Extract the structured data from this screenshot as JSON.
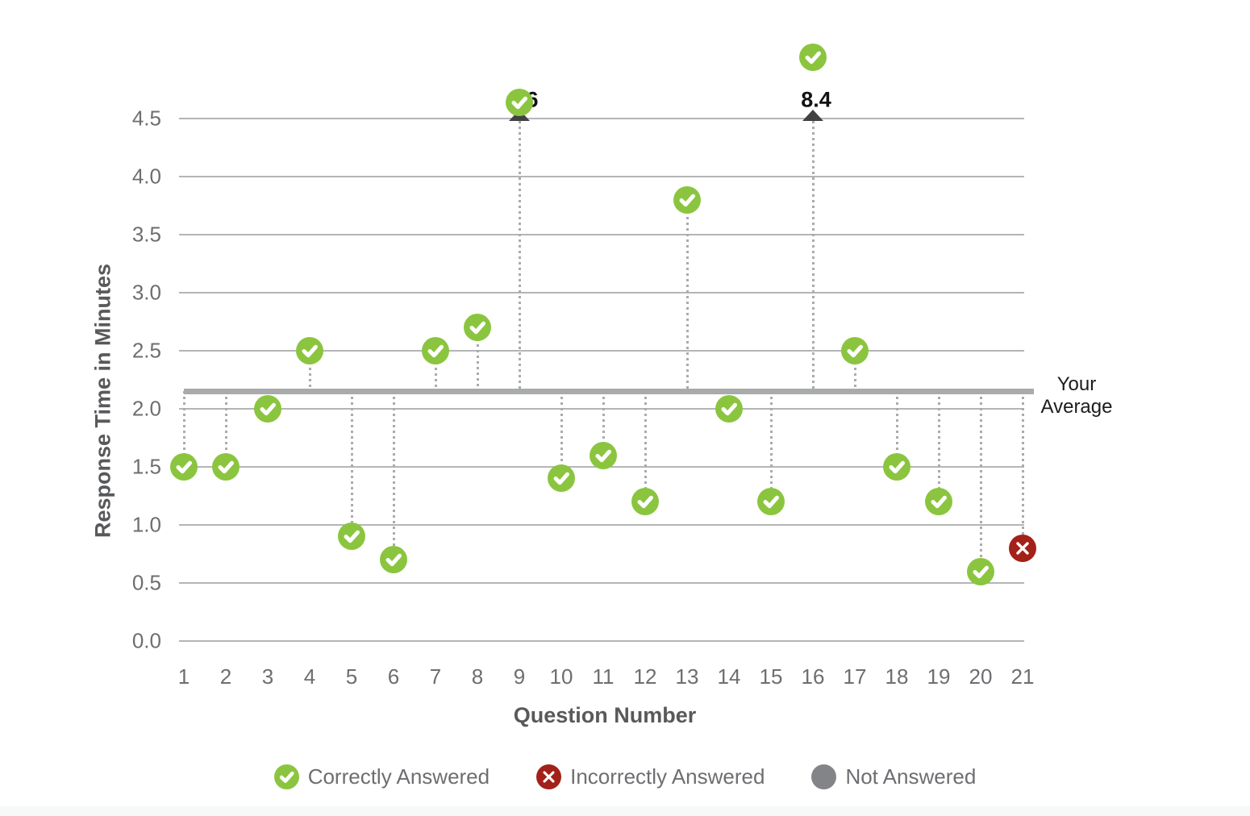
{
  "chart_data": {
    "type": "scatter",
    "xlabel": "Question Number",
    "ylabel": "Response Time in Minutes",
    "yticks": [
      0.0,
      0.5,
      1.0,
      1.5,
      2.0,
      2.5,
      3.0,
      3.5,
      4.0,
      4.5
    ],
    "ylim": [
      0,
      4.5
    ],
    "x_categories": [
      1,
      2,
      3,
      4,
      5,
      6,
      7,
      8,
      9,
      10,
      11,
      12,
      13,
      14,
      15,
      16,
      17,
      18,
      19,
      20,
      21
    ],
    "average": {
      "value": 2.15,
      "label": "Your Average"
    },
    "points": [
      {
        "q": 1,
        "value": 1.5,
        "status": "correct"
      },
      {
        "q": 2,
        "value": 1.5,
        "status": "correct"
      },
      {
        "q": 3,
        "value": 2.0,
        "status": "correct"
      },
      {
        "q": 4,
        "value": 2.5,
        "status": "correct"
      },
      {
        "q": 5,
        "value": 0.9,
        "status": "correct"
      },
      {
        "q": 6,
        "value": 0.7,
        "status": "correct"
      },
      {
        "q": 7,
        "value": 2.5,
        "status": "correct"
      },
      {
        "q": 8,
        "value": 2.7,
        "status": "correct"
      },
      {
        "q": 9,
        "value": 4.64,
        "status": "correct",
        "off_scale": true,
        "label": "6"
      },
      {
        "q": 10,
        "value": 1.4,
        "status": "correct"
      },
      {
        "q": 11,
        "value": 1.6,
        "status": "correct"
      },
      {
        "q": 12,
        "value": 1.2,
        "status": "correct"
      },
      {
        "q": 13,
        "value": 3.8,
        "status": "correct"
      },
      {
        "q": 14,
        "value": 2.0,
        "status": "correct"
      },
      {
        "q": 15,
        "value": 1.2,
        "status": "correct"
      },
      {
        "q": 16,
        "value": 5.03,
        "status": "correct",
        "off_scale": true,
        "label": "8.4"
      },
      {
        "q": 17,
        "value": 2.5,
        "status": "correct"
      },
      {
        "q": 18,
        "value": 1.5,
        "status": "correct"
      },
      {
        "q": 19,
        "value": 1.2,
        "status": "correct"
      },
      {
        "q": 20,
        "value": 0.6,
        "status": "correct"
      },
      {
        "q": 21,
        "value": 0.8,
        "status": "incorrect"
      }
    ],
    "legend": [
      {
        "status": "correct",
        "label": "Correctly Answered"
      },
      {
        "status": "incorrect",
        "label": "Incorrectly Answered"
      },
      {
        "status": "not_answered",
        "label": "Not Answered"
      }
    ]
  },
  "colors": {
    "correct": "#8bc53f",
    "incorrect": "#a32119",
    "not_answered": "#828487",
    "gridline": "#b3b5b7",
    "average_line": "#a8aaac",
    "stem": "#aaabad",
    "arrow": "#414042",
    "tick_label": "#6d6e71",
    "axis_title": "#58595b",
    "value_label": "#121212"
  }
}
